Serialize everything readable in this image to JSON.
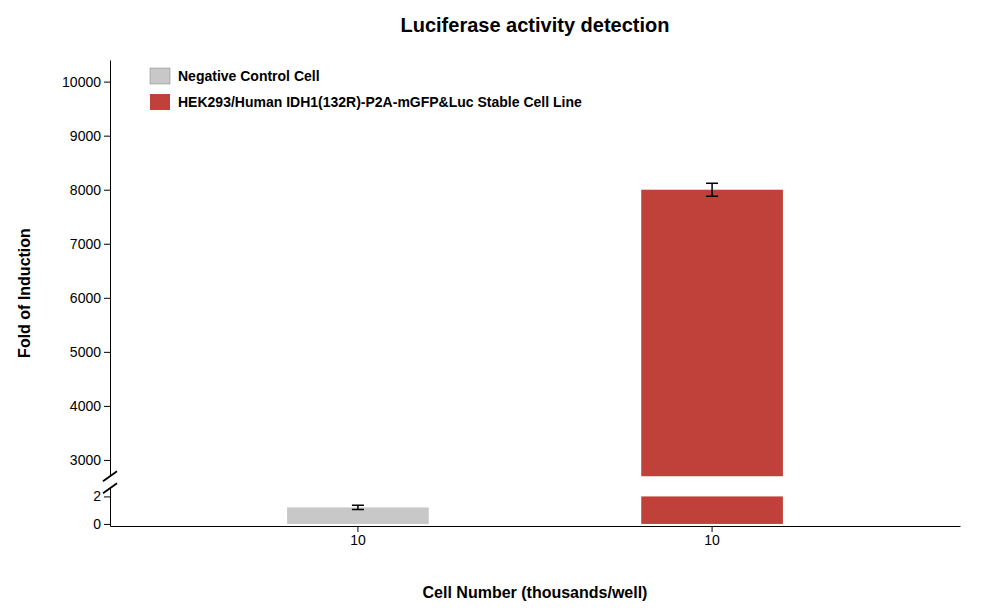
{
  "chart_data": [
    {
      "type": "bar",
      "title": "Luciferase activity detection",
      "ylabel": "Fold of Induction",
      "categories": [
        "10",
        "10"
      ],
      "series": [
        {
          "name": "Negative Control Cell",
          "color": "#c8c8c8",
          "values": [
            null,
            null
          ]
        },
        {
          "name": "HEK293/Human IDH1(132R)-P2A-mGFP&Luc Stable Cell Line",
          "color": "#c0403a",
          "values": [
            null,
            8000
          ],
          "errors": [
            null,
            120
          ]
        }
      ],
      "ylim": [
        2700,
        10400
      ],
      "yticks": [
        3000,
        4000,
        5000,
        6000,
        7000,
        8000,
        9000,
        10000
      ],
      "legend": "upper left",
      "grid": false,
      "tick_labels": "y"
    },
    {
      "type": "bar",
      "xlabel": "Cell Number (thousands/well)",
      "categories": [
        "10",
        "10"
      ],
      "series": [
        {
          "color": "#c8c8c8",
          "values": [
            1.2,
            null
          ],
          "errors": [
            0.15,
            null
          ]
        },
        {
          "color": "#c0403a",
          "values": [
            null,
            2.0
          ]
        }
      ],
      "ylim": [
        -0.15,
        2.6
      ],
      "yticks": [
        0,
        2
      ],
      "grid": false
    }
  ]
}
